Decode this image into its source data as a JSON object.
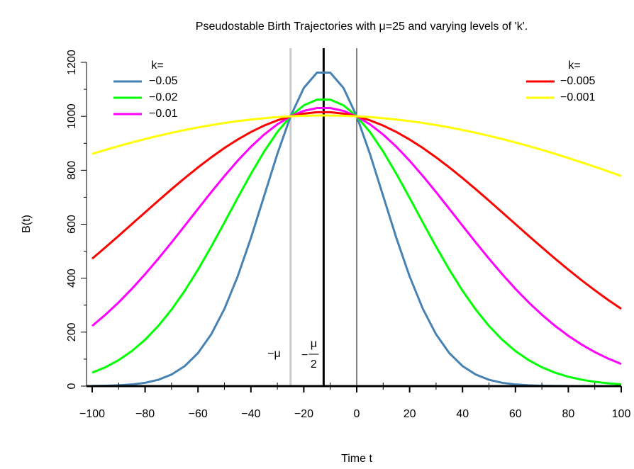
{
  "chart_data": {
    "type": "line",
    "title": "Pseudostable Birth Trajectories with μ=25 and varying levels of 'k'.",
    "xlabel": "Time t",
    "ylabel": "B(t)",
    "x": [
      -100,
      -95,
      -90,
      -85,
      -80,
      -75,
      -70,
      -65,
      -60,
      -55,
      -50,
      -45,
      -40,
      -35,
      -30,
      -25,
      -20,
      -15,
      -10,
      -5,
      0,
      5,
      10,
      15,
      20,
      25,
      30,
      35,
      40,
      45,
      50,
      55,
      60,
      65,
      70,
      75,
      80,
      85,
      90,
      95,
      100
    ],
    "series": [
      {
        "name": "−0.05",
        "color": "#4682b4",
        "legend": "top-left",
        "values": [
          0.6,
          1.3,
          2.9,
          6.1,
          12.3,
          23.5,
          42.9,
          74.3,
          122.5,
          192.0,
          286.5,
          406.6,
          548.8,
          704.7,
          860.7,
          1000,
          1105.2,
          1161.8,
          1161.8,
          1105.2,
          1000,
          860.7,
          704.7,
          548.8,
          406.6,
          286.5,
          192.0,
          122.5,
          74.3,
          42.9,
          23.5,
          12.3,
          6.1,
          2.9,
          1.3,
          0.6,
          0.2,
          0.1,
          0,
          0,
          0
        ]
      },
      {
        "name": "−0.02",
        "color": "#00ff00",
        "legend": "top-left",
        "values": [
          49.8,
          69.9,
          96.3,
          130.0,
          172.0,
          223.1,
          283.7,
          353.5,
          431.7,
          516.9,
          606.5,
          697.7,
          786.6,
          869.4,
          941.8,
          1000,
          1040.8,
          1061.8,
          1061.8,
          1040.8,
          1000,
          941.8,
          869.4,
          786.6,
          697.7,
          606.5,
          516.9,
          431.7,
          353.5,
          283.7,
          223.1,
          172.0,
          130.0,
          96.3,
          69.9,
          49.8,
          34.7,
          23.8,
          15.9,
          10.5,
          6.7
        ]
      },
      {
        "name": "−0.01",
        "color": "#ff00ff",
        "legend": "top-left",
        "values": [
          223.1,
          264.5,
          310.4,
          360.6,
          414.8,
          472.4,
          532.6,
          594.5,
          657.0,
          718.9,
          778.8,
          835.3,
          886.9,
          932.4,
          970.4,
          1000,
          1020.2,
          1030.5,
          1030.5,
          1020.2,
          1000,
          970.4,
          932.4,
          886.9,
          835.3,
          778.8,
          718.9,
          657.0,
          594.5,
          532.6,
          472.4,
          414.8,
          360.6,
          310.4,
          264.5,
          223.1,
          186.4,
          154.1,
          126.2,
          102.3,
          82.1
        ]
      },
      {
        "name": "−0.005",
        "color": "#ff0000",
        "legend": "top-right",
        "values": [
          472.4,
          514.3,
          557.1,
          600.5,
          644.0,
          687.3,
          729.8,
          771.1,
          810.6,
          847.9,
          882.5,
          913.9,
          941.8,
          965.6,
          985.1,
          1000,
          1010.1,
          1015.1,
          1015.1,
          1010.1,
          1000,
          985.1,
          965.6,
          941.8,
          913.9,
          882.5,
          847.9,
          810.6,
          771.1,
          729.8,
          687.3,
          644.0,
          600.5,
          557.1,
          514.3,
          472.4,
          431.7,
          392.6,
          355.2,
          319.8,
          286.5
        ]
      },
      {
        "name": "−0.001",
        "color": "#ffff00",
        "legend": "top-right",
        "values": [
          860.7,
          875.5,
          889.6,
          903.0,
          915.8,
          927.7,
          938.9,
          949.3,
          958.9,
          967.5,
          975.3,
          982.2,
          988.1,
          993.0,
          997.0,
          1000,
          1002.0,
          1003.0,
          1003.0,
          1002.0,
          1000,
          997.0,
          993.0,
          988.1,
          982.2,
          975.3,
          967.5,
          958.9,
          949.3,
          938.9,
          927.7,
          915.8,
          903.0,
          889.6,
          875.5,
          860.7,
          845.4,
          829.4,
          813.0,
          796.1,
          778.8
        ]
      }
    ],
    "legends": [
      {
        "corner": "top-left",
        "title": "k="
      },
      {
        "corner": "top-right",
        "title": "k="
      }
    ],
    "xlim": [
      -100,
      100
    ],
    "ylim": [
      0,
      1200
    ],
    "xticks": [
      {
        "value": -100,
        "label": "−100"
      },
      {
        "value": -80,
        "label": "−80"
      },
      {
        "value": -60,
        "label": "−60"
      },
      {
        "value": -40,
        "label": "−40"
      },
      {
        "value": -20,
        "label": "−20"
      },
      0,
      20,
      40,
      60,
      80,
      100
    ],
    "xminor_ticks": [
      -90,
      -70,
      -50,
      -30,
      -10,
      10,
      30,
      50,
      70,
      90
    ],
    "yticks": [
      0,
      200,
      400,
      600,
      800,
      1000,
      1200
    ],
    "yminor_ticks": [
      100,
      300,
      500,
      700,
      900,
      1100
    ],
    "vlines": [
      {
        "x": -25,
        "color": "#cccccc",
        "width": 3,
        "label": "−μ"
      },
      {
        "x": -12.5,
        "color": "#000000",
        "width": 3,
        "label_sign": "−",
        "label_num": "μ",
        "label_den": "2"
      },
      {
        "x": 0,
        "color": "#000000",
        "width": 1
      }
    ]
  }
}
